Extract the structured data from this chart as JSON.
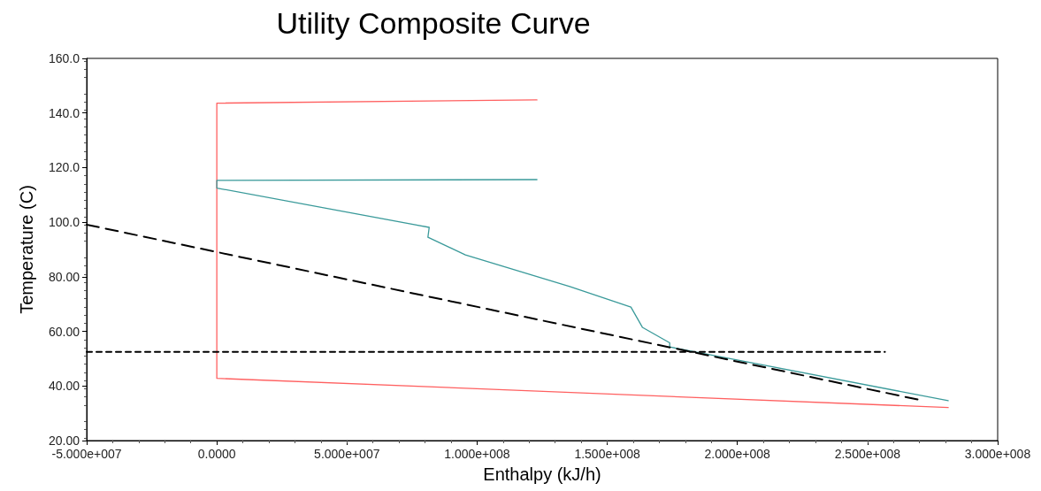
{
  "chart_data": {
    "type": "line",
    "title": "Utility Composite Curve",
    "xlabel": "Enthalpy (kJ/h)",
    "ylabel": "Temperature (C)",
    "xlim": [
      -50000000,
      300000000
    ],
    "xticks": [
      {
        "value": -50000000,
        "label": "-5.000e+007"
      },
      {
        "value": 0,
        "label": "0.0000"
      },
      {
        "value": 50000000,
        "label": "5.000e+007"
      },
      {
        "value": 100000000,
        "label": "1.000e+008"
      },
      {
        "value": 150000000,
        "label": "1.500e+008"
      },
      {
        "value": 200000000,
        "label": "2.000e+008"
      },
      {
        "value": 250000000,
        "label": "2.500e+008"
      },
      {
        "value": 300000000,
        "label": "3.000e+008"
      }
    ],
    "ylim": [
      20,
      160
    ],
    "yticks": [
      {
        "value": 20,
        "label": "20.00"
      },
      {
        "value": 40,
        "label": "40.00"
      },
      {
        "value": 60,
        "label": "60.00"
      },
      {
        "value": 80,
        "label": "80.00"
      },
      {
        "value": 100,
        "label": "100.0"
      },
      {
        "value": 120,
        "label": "120.0"
      },
      {
        "value": 140,
        "label": "140.0"
      },
      {
        "value": 160,
        "label": "160.0"
      }
    ],
    "grid": false,
    "marker": "none",
    "series": [
      {
        "color": "#ff6060",
        "line_style": "solid",
        "x": [
          123000000,
          0,
          0,
          281000000
        ],
        "values": [
          144.8,
          143.6,
          42.8,
          32.1
        ]
      },
      {
        "color": "#3a9a9a",
        "line_style": "solid",
        "x": [
          123000000,
          0,
          0,
          81600000,
          81100000,
          95500000,
          135600000,
          159100000,
          163500000,
          174000000,
          174000000,
          281000000
        ],
        "values": [
          115.6,
          115.3,
          112.5,
          98.1,
          94.5,
          88.0,
          76.4,
          68.9,
          61.5,
          55.8,
          54.3,
          34.6
        ]
      },
      {
        "color": "#000000",
        "line_style": "dashed",
        "x": [
          -50000000,
          270000000
        ],
        "values": [
          99.1,
          34.9
        ]
      },
      {
        "color": "#000000",
        "line_style": "dotted",
        "x": [
          -50000000,
          256700000
        ],
        "values": [
          52.5,
          52.5
        ]
      }
    ]
  }
}
